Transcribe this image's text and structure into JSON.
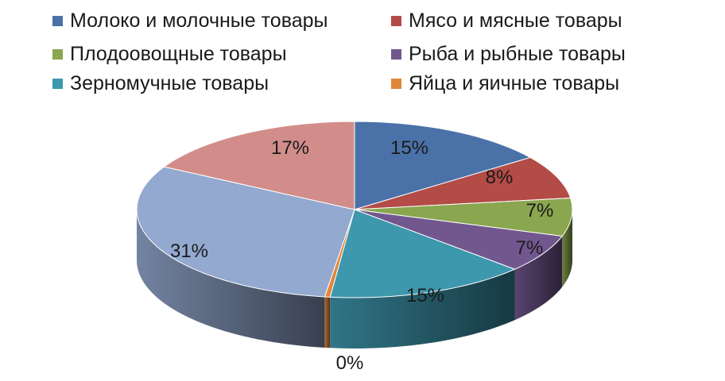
{
  "chart_data": {
    "type": "pie",
    "style": "3d",
    "legend_position": "top",
    "categories": [
      "Молоко и молочные товары",
      "Мясо и мясные товары",
      "Плодоовощные товары",
      "Рыба и рыбные товары",
      "Зерномучные товары",
      "Яйца и яичные товары",
      "",
      ""
    ],
    "values": [
      15,
      8,
      7,
      7,
      15,
      0.4,
      31,
      17
    ],
    "labels": [
      "15%",
      "8%",
      "7%",
      "7%",
      "15%",
      "0%",
      "31%",
      "17%"
    ],
    "colors": [
      "#4a72a8",
      "#b34b47",
      "#8aa64f",
      "#72578f",
      "#3d97ad",
      "#e0873a",
      "#93a9d0",
      "#d28d8a"
    ],
    "legend_entries": [
      0,
      1,
      2,
      3,
      4,
      5
    ]
  }
}
